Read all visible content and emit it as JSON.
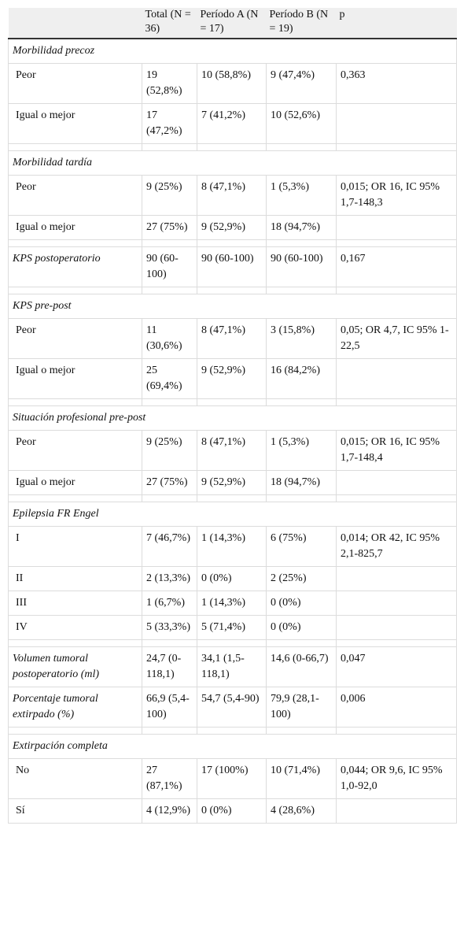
{
  "table": {
    "header": [
      "Total (N = 36)",
      "Período A (N = 17)",
      "Período B (N = 19)",
      "p"
    ],
    "groups": [
      {
        "heading": "Morbilidad precoz",
        "rows": [
          [
            "Peor",
            "19 (52,8%)",
            "10 (58,8%)",
            "9 (47,4%)",
            "0,363"
          ],
          [
            "Igual o mejor",
            "17 (47,2%)",
            "7 (41,2%)",
            "10 (52,6%)"
          ]
        ]
      },
      {
        "heading": "Morbilidad tardía",
        "rows": [
          [
            "Peor",
            "9 (25%)",
            "8 (47,1%)",
            "1 (5,3%)",
            "0,015; OR 16, IC 95% 1,7-148,3"
          ],
          [
            "Igual o mejor",
            "27 (75%)",
            "9 (52,9%)",
            "18 (94,7%)"
          ]
        ]
      },
      {
        "rows": [
          [
            "KPS postoperatorio",
            "90 (60-100)",
            "90 (60-100)",
            "90 (60-100)",
            "0,167"
          ]
        ]
      },
      {
        "heading": "KPS pre-post",
        "rows": [
          [
            "Peor",
            "11 (30,6%)",
            "8 (47,1%)",
            "3 (15,8%)",
            "0,05; OR 4,7, IC 95% 1-22,5"
          ],
          [
            "Igual o mejor",
            "25 (69,4%)",
            "9 (52,9%)",
            "16 (84,2%)"
          ]
        ]
      },
      {
        "heading": "Situación profesional pre-post",
        "rows": [
          [
            "Peor",
            "9 (25%)",
            "8 (47,1%)",
            "1 (5,3%)",
            "0,015; OR 16, IC 95% 1,7-148,4"
          ],
          [
            "Igual o mejor",
            "27 (75%)",
            "9 (52,9%)",
            "18 (94,7%)"
          ]
        ]
      },
      {
        "heading": "Epilepsia FR Engel",
        "rows": [
          [
            "I",
            "7 (46,7%)",
            "1 (14,3%)",
            "6 (75%)",
            "0,014; OR 42, IC 95% 2,1-825,7"
          ],
          [
            "II",
            "2 (13,3%)",
            "0 (0%)",
            "2 (25%)"
          ],
          [
            "III",
            "1 (6,7%)",
            "1 (14,3%)",
            "0 (0%)"
          ],
          [
            "IV",
            "5 (33,3%)",
            "5 (71,4%)",
            "0 (0%)"
          ]
        ]
      },
      {
        "rows": [
          [
            "Volumen tumoral postoperatorio (ml)",
            "24,7 (0-118,1)",
            "34,1 (1,5-118,1)",
            "14,6 (0-66,7)",
            "0,047"
          ],
          [
            "Porcentaje tumoral extirpado (%)",
            "66,9 (5,4-100)",
            "54,7 (5,4-90)",
            "79,9 (28,1-100)",
            "0,006"
          ]
        ]
      },
      {
        "heading": "Extirpación completa",
        "rows": [
          [
            "No",
            "27 (87,1%)",
            "17 (100%)",
            "10 (71,4%)",
            "0,044; OR 9,6, IC 95% 1,0-92,0"
          ],
          [
            "Sí",
            "4 (12,9%)",
            "0 (0%)",
            "4 (28,6%)"
          ]
        ]
      }
    ]
  }
}
